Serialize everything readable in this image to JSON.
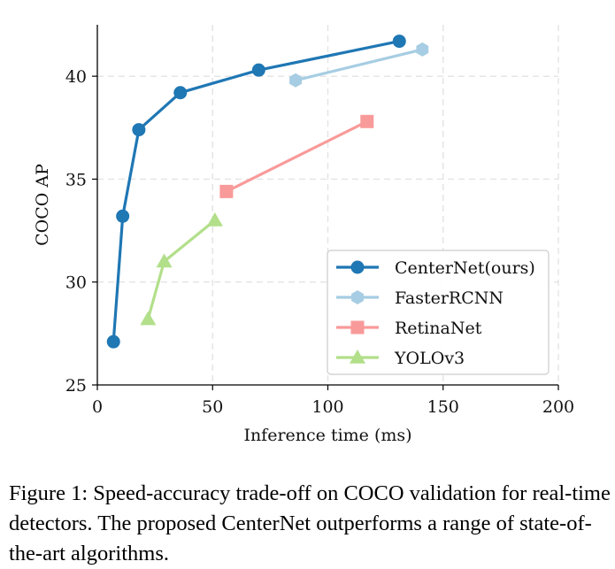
{
  "chart_data": {
    "type": "line",
    "title": "",
    "xlabel": "Inference time (ms)",
    "ylabel": "COCO AP",
    "xlim": [
      0,
      200
    ],
    "ylim": [
      25,
      42.5
    ],
    "xticks": [
      0,
      50,
      100,
      150,
      200
    ],
    "yticks": [
      25,
      30,
      35,
      40
    ],
    "grid": true,
    "legend_position": "lower-right",
    "series": [
      {
        "name": "CenterNet(ours)",
        "color": "#1f77b4",
        "marker": "circle",
        "x": [
          7,
          11,
          18,
          36,
          70,
          131
        ],
        "y": [
          27.1,
          33.2,
          37.4,
          39.2,
          40.3,
          41.7
        ]
      },
      {
        "name": "FasterRCNN",
        "color": "#a6cde3",
        "marker": "hexagon",
        "x": [
          86,
          141
        ],
        "y": [
          39.8,
          41.3
        ]
      },
      {
        "name": "RetinaNet",
        "color": "#f99a9a",
        "marker": "square",
        "x": [
          56,
          117
        ],
        "y": [
          34.4,
          37.8
        ]
      },
      {
        "name": "YOLOv3",
        "color": "#b2df8a",
        "marker": "triangle",
        "x": [
          22,
          29,
          51
        ],
        "y": [
          28.2,
          31.0,
          33.0
        ]
      }
    ]
  },
  "caption": {
    "text": "Figure 1: Speed-accuracy trade-off on COCO validation for real-time detectors. The proposed CenterNet outperforms a range of state-of-the-art algorithms."
  }
}
